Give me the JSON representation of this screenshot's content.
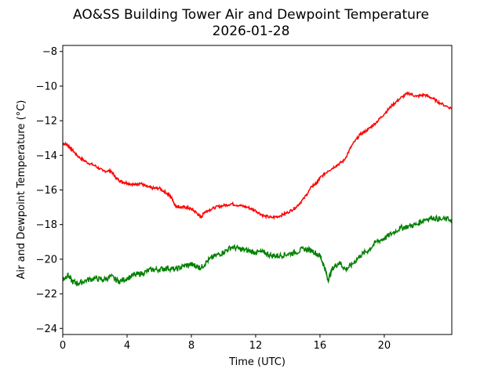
{
  "chart_data": {
    "type": "line",
    "title_line1": "AO&SS Building Tower Air and Dewpoint Temperature",
    "title_line2": "2026-01-28",
    "xlabel": "Time (UTC)",
    "ylabel": "Air and Dewpoint Temperature (°C)",
    "xlim": [
      0,
      24.2
    ],
    "ylim": [
      -24.35,
      -7.65
    ],
    "xticks": [
      0,
      4,
      8,
      12,
      16,
      20
    ],
    "xtick_labels": [
      "0",
      "4",
      "8",
      "12",
      "16",
      "20"
    ],
    "yticks": [
      -24,
      -22,
      -20,
      -18,
      -16,
      -14,
      -12,
      -10,
      -8
    ],
    "ytick_labels": [
      "−24",
      "−22",
      "−20",
      "−18",
      "−16",
      "−14",
      "−12",
      "−10",
      "−8"
    ],
    "grid": false,
    "series": [
      {
        "color": "#ff0000",
        "x": [
          0,
          0.3,
          0.6,
          1.0,
          1.5,
          2.0,
          2.5,
          3.0,
          3.3,
          3.6,
          4.0,
          4.5,
          4.8,
          5.2,
          5.6,
          6.0,
          6.5,
          6.8,
          7.0,
          7.3,
          7.7,
          8.0,
          8.3,
          8.6,
          8.8,
          9.0,
          9.5,
          10.0,
          10.5,
          11.0,
          11.5,
          12.0,
          12.5,
          13.0,
          13.5,
          14.0,
          14.5,
          15.0,
          15.5,
          15.8,
          16.0,
          16.5,
          17.0,
          17.5,
          18.0,
          18.5,
          19.0,
          19.5,
          20.0,
          20.5,
          21.0,
          21.5,
          22.0,
          22.5,
          23.0,
          23.5,
          24.2
        ],
        "y": [
          -13.3,
          -13.4,
          -13.7,
          -14.1,
          -14.4,
          -14.6,
          -14.9,
          -14.9,
          -15.3,
          -15.5,
          -15.6,
          -15.7,
          -15.6,
          -15.8,
          -15.9,
          -15.9,
          -16.2,
          -16.5,
          -16.9,
          -17.0,
          -17.0,
          -17.1,
          -17.3,
          -17.6,
          -17.3,
          -17.2,
          -17.0,
          -16.9,
          -16.8,
          -16.9,
          -17.0,
          -17.2,
          -17.5,
          -17.6,
          -17.5,
          -17.3,
          -17.0,
          -16.5,
          -15.8,
          -15.6,
          -15.3,
          -14.9,
          -14.6,
          -14.3,
          -13.4,
          -12.8,
          -12.5,
          -12.1,
          -11.6,
          -11.1,
          -10.7,
          -10.4,
          -10.6,
          -10.5,
          -10.7,
          -11.0,
          -11.3
        ]
      },
      {
        "color": "#008000",
        "x": [
          0,
          0.3,
          0.6,
          1.0,
          1.5,
          2.0,
          2.5,
          3.0,
          3.5,
          4.0,
          4.5,
          5.0,
          5.5,
          6.0,
          6.5,
          7.0,
          7.5,
          8.0,
          8.3,
          8.6,
          9.0,
          9.5,
          10.0,
          10.5,
          11.0,
          11.5,
          12.0,
          12.5,
          13.0,
          13.5,
          14.0,
          14.5,
          15.0,
          15.5,
          16.0,
          16.3,
          16.5,
          16.8,
          17.2,
          17.6,
          18.0,
          18.5,
          19.0,
          19.5,
          20.0,
          20.5,
          21.0,
          21.5,
          22.0,
          22.5,
          23.0,
          23.5,
          24.2
        ],
        "y": [
          -21.2,
          -20.9,
          -21.3,
          -21.4,
          -21.2,
          -21.1,
          -21.2,
          -21.0,
          -21.3,
          -21.1,
          -20.9,
          -20.8,
          -20.6,
          -20.6,
          -20.5,
          -20.6,
          -20.4,
          -20.3,
          -20.4,
          -20.5,
          -20.1,
          -19.8,
          -19.6,
          -19.3,
          -19.4,
          -19.5,
          -19.6,
          -19.6,
          -19.8,
          -19.8,
          -19.7,
          -19.6,
          -19.4,
          -19.5,
          -19.8,
          -20.5,
          -21.2,
          -20.5,
          -20.2,
          -20.6,
          -20.3,
          -19.8,
          -19.5,
          -19.0,
          -18.8,
          -18.5,
          -18.2,
          -18.1,
          -18.0,
          -17.7,
          -17.6,
          -17.7,
          -17.7
        ]
      }
    ]
  }
}
